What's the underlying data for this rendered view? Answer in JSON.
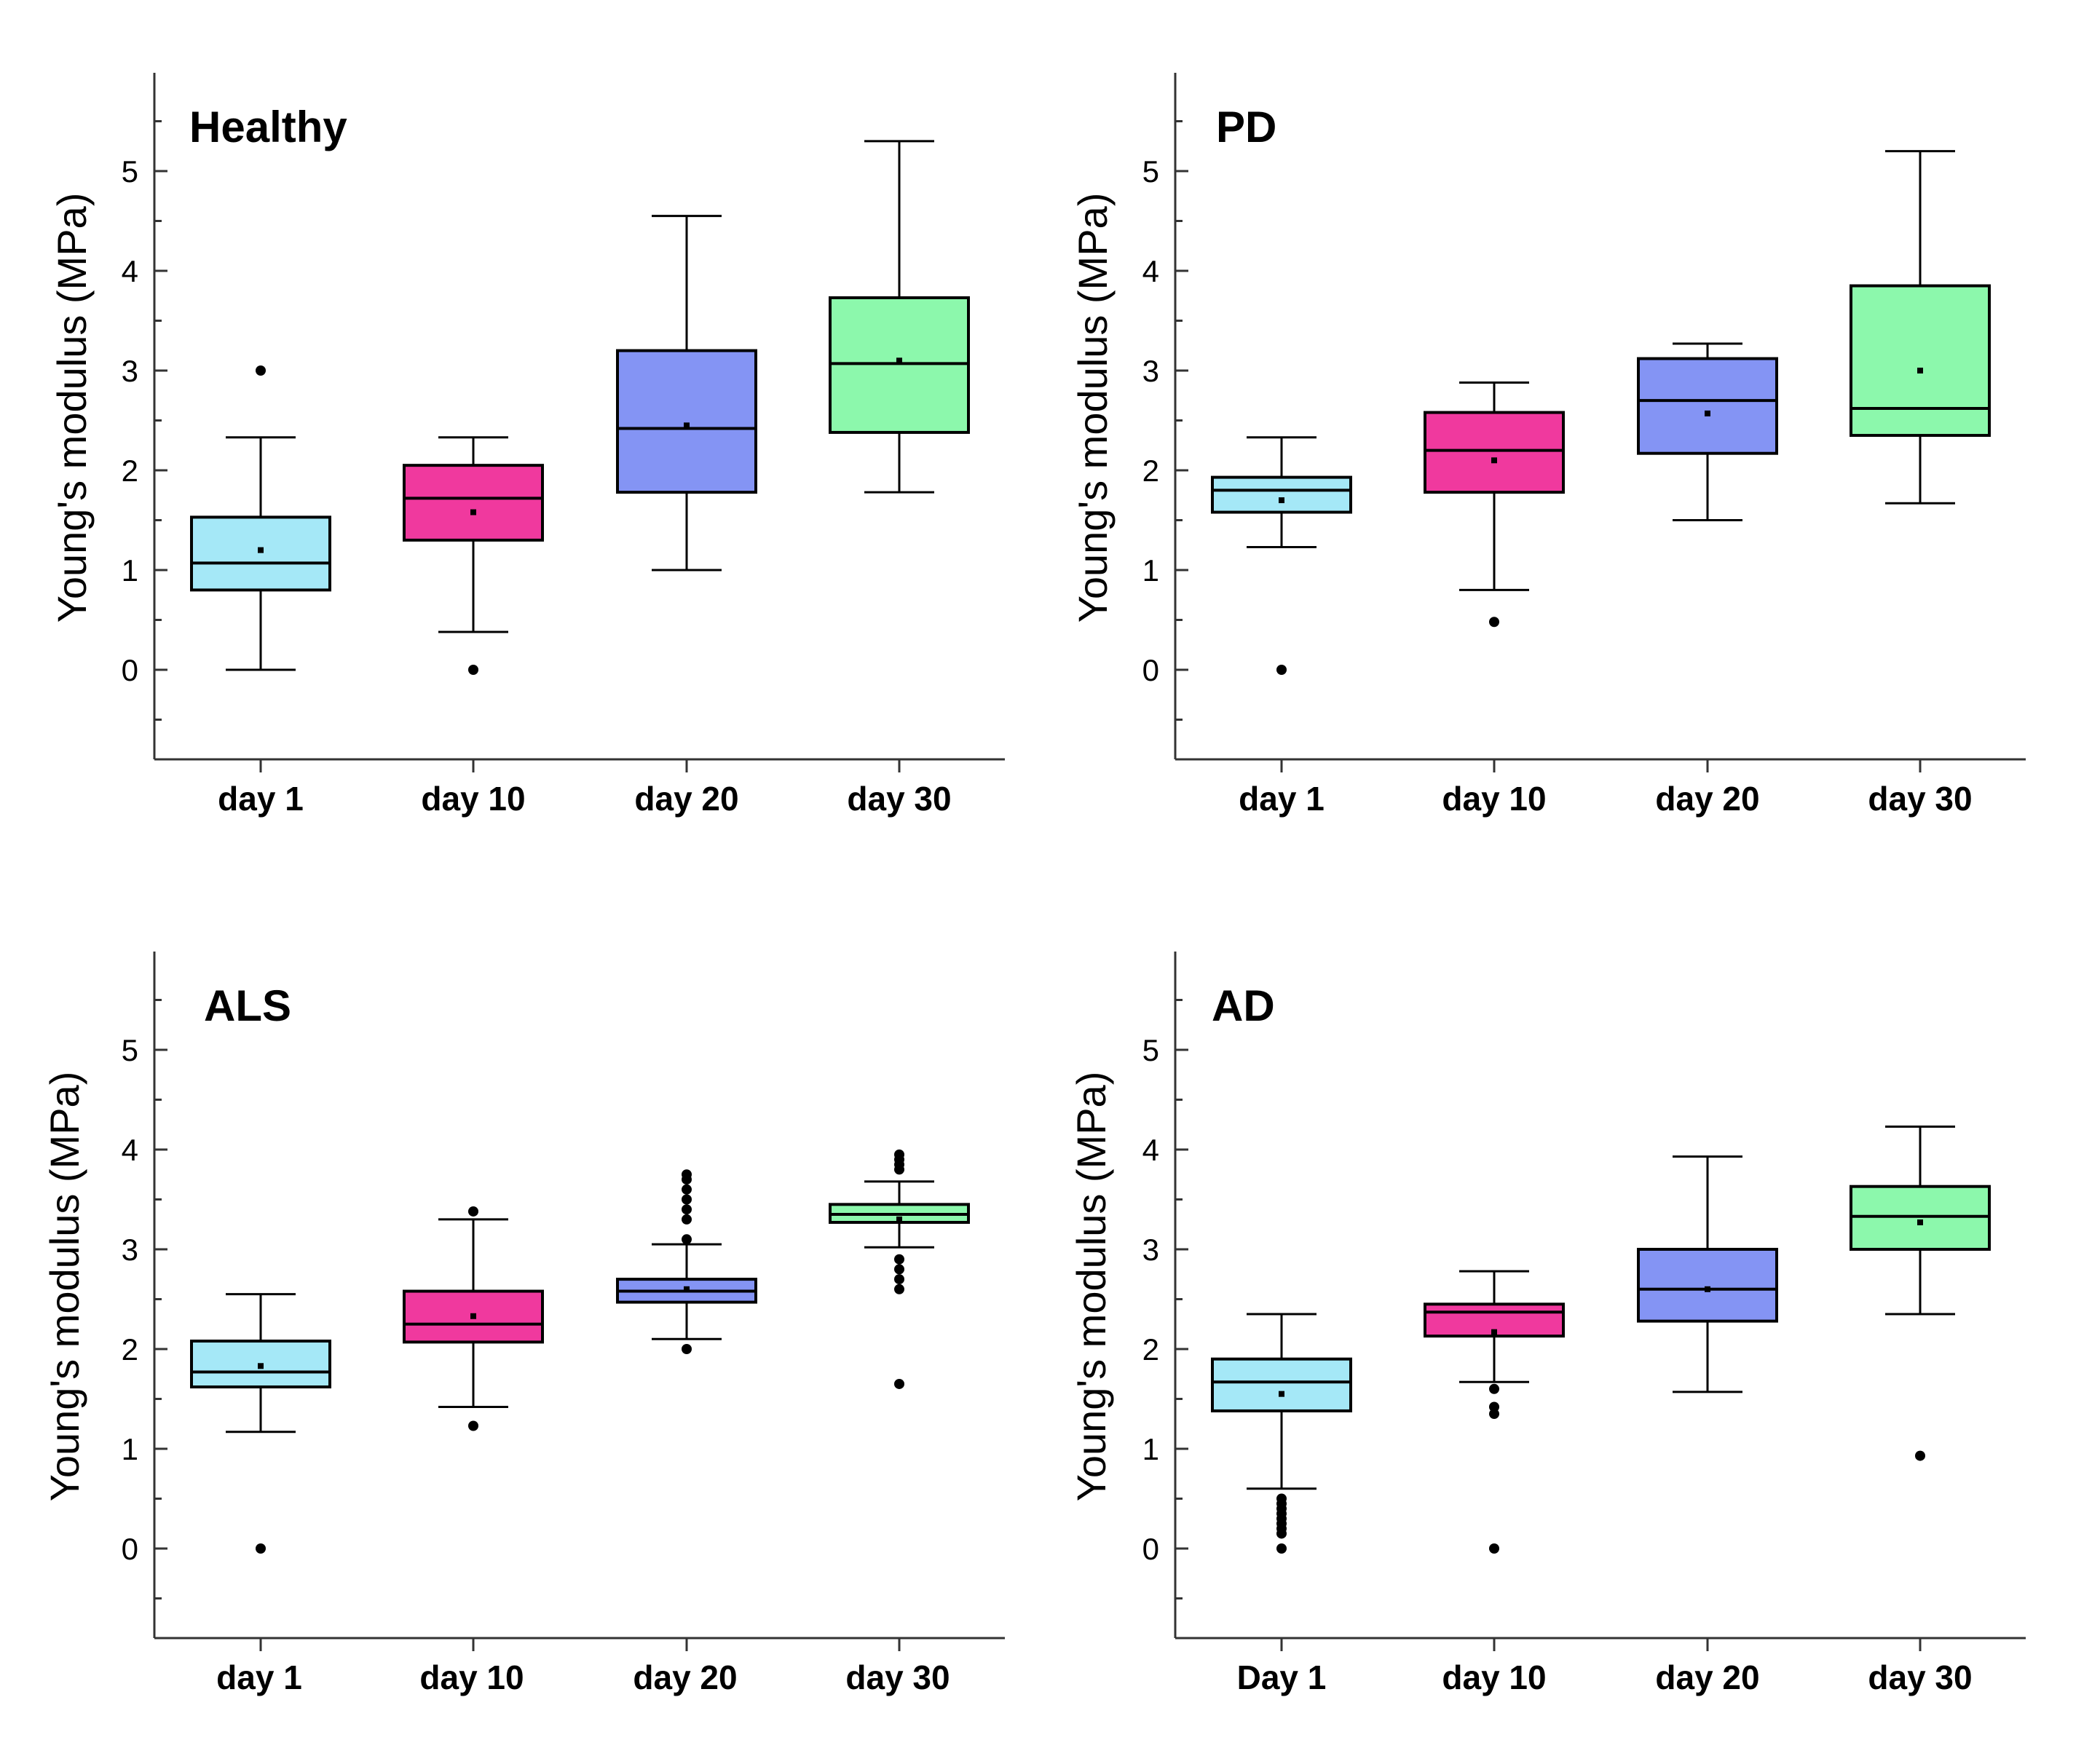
{
  "chart_data": [
    {
      "type": "box",
      "title": "Healthy",
      "ylabel": "Young's modulus (MPa)",
      "ylim": [
        -0.9,
        5.9
      ],
      "yticks": [
        0,
        1,
        2,
        3,
        4,
        5
      ],
      "categories": [
        "day 1",
        "day 10",
        "day 20",
        "day 30"
      ],
      "boxes": [
        {
          "category": "day 1",
          "whisker_low": 0.0,
          "q1": 0.8,
          "median": 1.07,
          "q3": 1.53,
          "whisker_high": 2.33,
          "mean": 1.2,
          "outliers": [
            3.0
          ]
        },
        {
          "category": "day 10",
          "whisker_low": 0.38,
          "q1": 1.3,
          "median": 1.72,
          "q3": 2.05,
          "whisker_high": 2.33,
          "mean": 1.58,
          "outliers": [
            0.0
          ]
        },
        {
          "category": "day 20",
          "whisker_low": 1.0,
          "q1": 1.78,
          "median": 2.42,
          "q3": 3.2,
          "whisker_high": 4.55,
          "mean": 2.45,
          "outliers": []
        },
        {
          "category": "day 30",
          "whisker_low": 1.78,
          "q1": 2.38,
          "median": 3.07,
          "q3": 3.73,
          "whisker_high": 5.3,
          "mean": 3.1,
          "outliers": []
        }
      ]
    },
    {
      "type": "box",
      "title": "PD",
      "ylabel": "Young's modulus (MPa)",
      "ylim": [
        -0.9,
        5.9
      ],
      "yticks": [
        0,
        1,
        2,
        3,
        4,
        5
      ],
      "categories": [
        "day 1",
        "day 10",
        "day 20",
        "day 30"
      ],
      "boxes": [
        {
          "category": "day 1",
          "whisker_low": 1.23,
          "q1": 1.58,
          "median": 1.8,
          "q3": 1.93,
          "whisker_high": 2.33,
          "mean": 1.7,
          "outliers": [
            0.0
          ]
        },
        {
          "category": "day 10",
          "whisker_low": 0.8,
          "q1": 1.78,
          "median": 2.2,
          "q3": 2.58,
          "whisker_high": 2.88,
          "mean": 2.1,
          "outliers": [
            0.48
          ]
        },
        {
          "category": "day 20",
          "whisker_low": 1.5,
          "q1": 2.17,
          "median": 2.7,
          "q3": 3.12,
          "whisker_high": 3.27,
          "mean": 2.57,
          "outliers": []
        },
        {
          "category": "day 30",
          "whisker_low": 1.67,
          "q1": 2.35,
          "median": 2.62,
          "q3": 3.85,
          "whisker_high": 5.2,
          "mean": 3.0,
          "outliers": []
        }
      ]
    },
    {
      "type": "box",
      "title": "ALS",
      "ylabel": "Young's modulus (MPa)",
      "ylim": [
        -0.9,
        5.9
      ],
      "yticks": [
        0,
        1,
        2,
        3,
        4,
        5
      ],
      "categories": [
        "day 1",
        "day 10",
        "day 20",
        "day 30"
      ],
      "boxes": [
        {
          "category": "day 1",
          "whisker_low": 1.17,
          "q1": 1.62,
          "median": 1.77,
          "q3": 2.08,
          "whisker_high": 2.55,
          "mean": 1.83,
          "outliers": [
            0.0
          ]
        },
        {
          "category": "day 10",
          "whisker_low": 1.42,
          "q1": 2.07,
          "median": 2.25,
          "q3": 2.58,
          "whisker_high": 3.3,
          "mean": 2.33,
          "outliers": [
            1.23,
            3.38
          ]
        },
        {
          "category": "day 20",
          "whisker_low": 2.1,
          "q1": 2.47,
          "median": 2.58,
          "q3": 2.7,
          "whisker_high": 3.05,
          "mean": 2.6,
          "outliers": [
            2.0,
            3.1,
            3.3,
            3.4,
            3.5,
            3.6,
            3.7,
            3.75
          ]
        },
        {
          "category": "day 30",
          "whisker_low": 3.02,
          "q1": 3.27,
          "median": 3.35,
          "q3": 3.45,
          "whisker_high": 3.68,
          "mean": 3.3,
          "outliers": [
            1.65,
            2.6,
            2.7,
            2.8,
            2.9,
            3.8,
            3.85,
            3.9,
            3.95
          ]
        }
      ]
    },
    {
      "type": "box",
      "title": "AD",
      "ylabel": "Young's modulus (MPa)",
      "ylim": [
        -0.9,
        5.9
      ],
      "yticks": [
        0,
        1,
        2,
        3,
        4,
        5
      ],
      "categories": [
        "Day 1",
        "day 10",
        "day 20",
        "day 30"
      ],
      "boxes": [
        {
          "category": "Day 1",
          "whisker_low": 0.6,
          "q1": 1.38,
          "median": 1.67,
          "q3": 1.9,
          "whisker_high": 2.35,
          "mean": 1.55,
          "outliers": [
            0.0,
            0.15,
            0.2,
            0.25,
            0.3,
            0.35,
            0.4,
            0.45,
            0.5
          ]
        },
        {
          "category": "day 10",
          "whisker_low": 1.67,
          "q1": 2.13,
          "median": 2.37,
          "q3": 2.45,
          "whisker_high": 2.78,
          "mean": 2.17,
          "outliers": [
            0.0,
            1.35,
            1.42,
            1.6
          ]
        },
        {
          "category": "day 20",
          "whisker_low": 1.57,
          "q1": 2.28,
          "median": 2.6,
          "q3": 3.0,
          "whisker_high": 3.93,
          "mean": 2.6,
          "outliers": []
        },
        {
          "category": "day 30",
          "whisker_low": 2.35,
          "q1": 3.0,
          "median": 3.33,
          "q3": 3.63,
          "whisker_high": 4.23,
          "mean": 3.27,
          "outliers": [
            0.93
          ]
        }
      ]
    }
  ],
  "colors": {
    "day1": "#a5e8f7",
    "day10": "#f0399e",
    "day20": "#8494f4",
    "day30": "#8cf8ac",
    "stroke": "#000000",
    "outlier": "#000000"
  }
}
